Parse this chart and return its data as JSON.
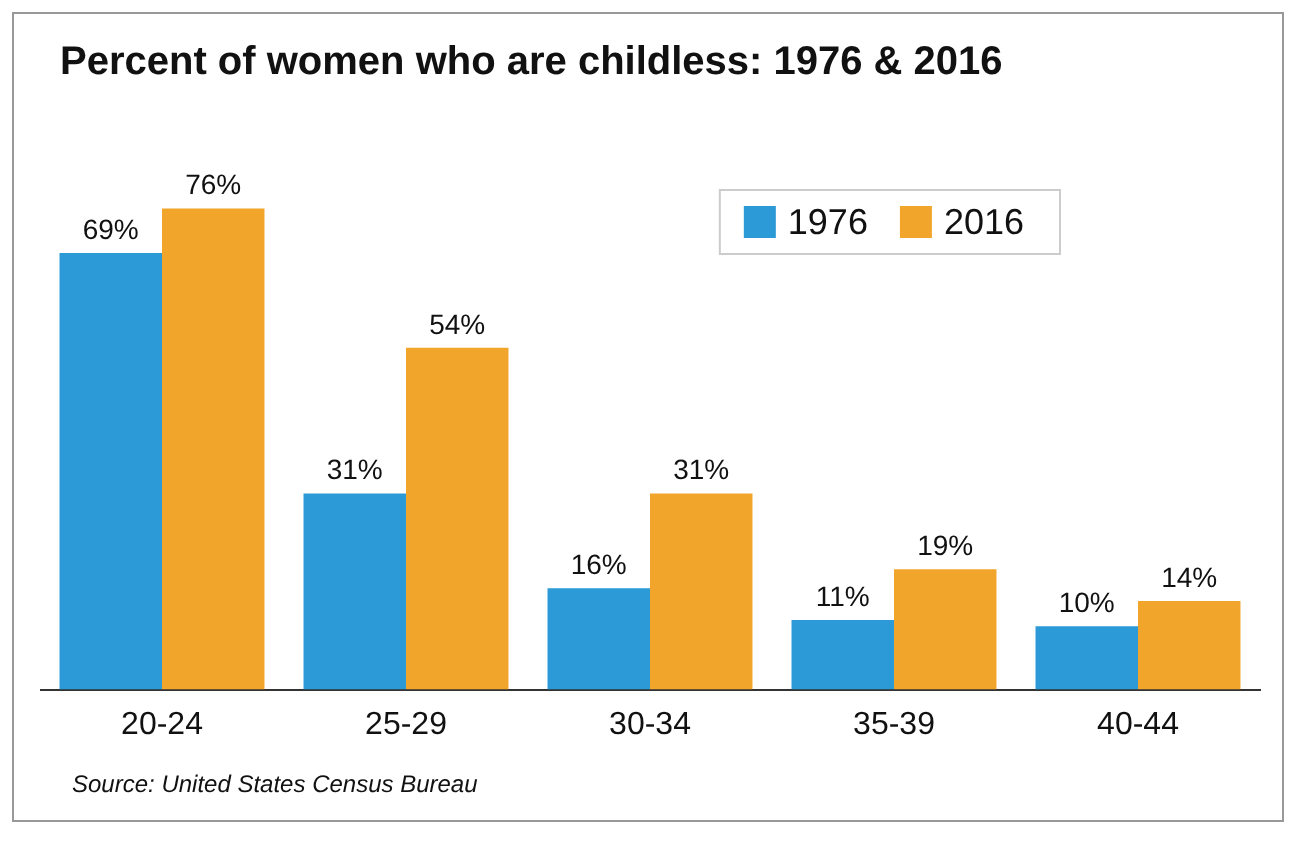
{
  "chart_data": {
    "type": "bar",
    "title": "Percent of women who are childless: 1976 & 2016",
    "categories": [
      "20-24",
      "25-29",
      "30-34",
      "35-39",
      "40-44"
    ],
    "series": [
      {
        "name": "1976",
        "color": "#2b9ad6",
        "values": [
          69,
          31,
          16,
          11,
          10
        ],
        "value_labels": [
          "69%",
          "31%",
          "16%",
          "11%",
          "10%"
        ]
      },
      {
        "name": "2016",
        "color": "#f2a52b",
        "values": [
          76,
          54,
          31,
          19,
          14
        ],
        "value_labels": [
          "76%",
          "54%",
          "31%",
          "19%",
          "14%"
        ]
      }
    ],
    "annotations": [
      "Source: United States Census Bureau"
    ],
    "legend": "top right",
    "grid": false,
    "tick_labels": "x"
  }
}
